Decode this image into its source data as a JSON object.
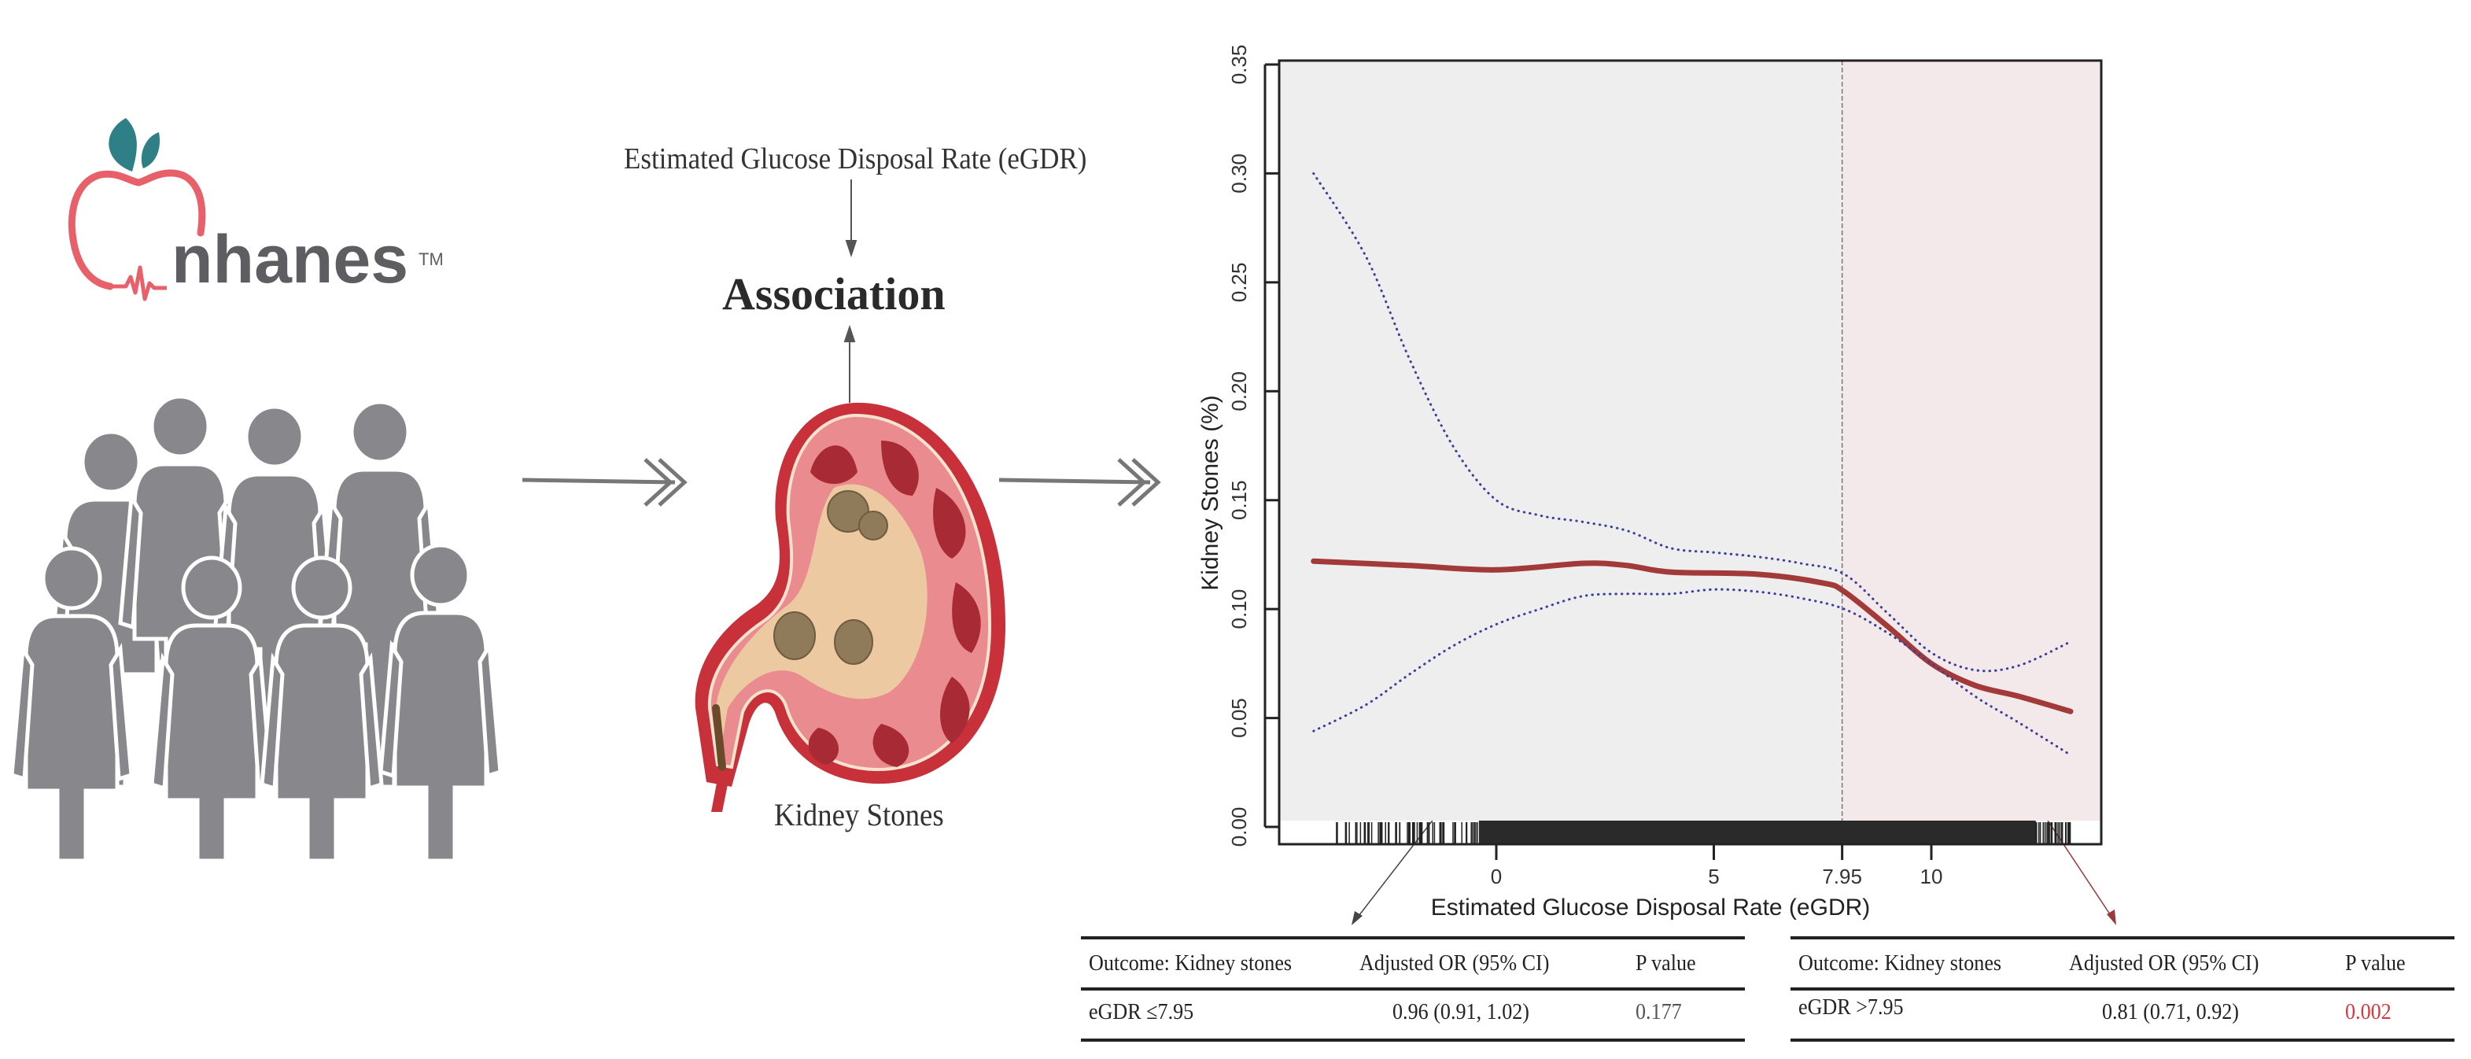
{
  "logo": {
    "text": "nhanes",
    "trademark": "TM",
    "colors": {
      "apple": "#e8606a",
      "leaf": "#2f7f86",
      "text": "#5e5e62"
    }
  },
  "people_icon": "group-of-people-icon",
  "exposure_label": "Estimated Glucose Disposal Rate (eGDR)",
  "center_title": "Association",
  "outcome_label": "Kidney Stones",
  "kidney_icon": "kidney-with-stones-icon",
  "chart_data": {
    "type": "line",
    "xlabel": "Estimated Glucose Disposal Rate (eGDR)",
    "ylabel": "Kidney Stones (%)",
    "xlim": [
      -4.5,
      14.0
    ],
    "ylim": [
      0,
      0.35
    ],
    "xticks": [
      "0",
      "5",
      "7.95",
      "10"
    ],
    "xtick_values": [
      0,
      5,
      7.95,
      10
    ],
    "yticks": [
      "0.00",
      "0.05",
      "0.10",
      "0.15",
      "0.20",
      "0.25",
      "0.30",
      "0.35"
    ],
    "ytick_values": [
      0,
      0.05,
      0.1,
      0.15,
      0.2,
      0.25,
      0.3,
      0.35
    ],
    "cutoff": 7.95,
    "grid": false,
    "series": [
      {
        "role": "estimate",
        "style": "solid",
        "color": "#a33a3a",
        "x": [
          -4.2,
          -2,
          0,
          2,
          3,
          4,
          6,
          7.5,
          8,
          9,
          10,
          11,
          12,
          13.2
        ],
        "y": [
          0.122,
          0.12,
          0.118,
          0.121,
          0.12,
          0.117,
          0.116,
          0.112,
          0.108,
          0.092,
          0.075,
          0.065,
          0.06,
          0.053
        ]
      },
      {
        "role": "upper 95% CI",
        "style": "dotted",
        "color": "#3b3f9a",
        "x": [
          -4.2,
          -3,
          -2,
          -1,
          0,
          1,
          2,
          3,
          4,
          5,
          6,
          7,
          8,
          9,
          10,
          11,
          12,
          13.2
        ],
        "y": [
          0.3,
          0.262,
          0.215,
          0.175,
          0.15,
          0.143,
          0.14,
          0.136,
          0.128,
          0.126,
          0.124,
          0.121,
          0.116,
          0.098,
          0.08,
          0.072,
          0.074,
          0.085
        ]
      },
      {
        "role": "lower 95% CI",
        "style": "dotted",
        "color": "#3b3f9a",
        "x": [
          -4.2,
          -3,
          -2,
          -1,
          0,
          1,
          2,
          3,
          4,
          5,
          6,
          7,
          8,
          9,
          10,
          11,
          12,
          13.2
        ],
        "y": [
          0.044,
          0.056,
          0.07,
          0.083,
          0.093,
          0.1,
          0.106,
          0.107,
          0.107,
          0.109,
          0.108,
          0.105,
          0.1,
          0.089,
          0.075,
          0.06,
          0.048,
          0.033
        ]
      }
    ],
    "rug": {
      "dense_from": -0.4,
      "dense_to": 12.4,
      "sparse_from": -4.3,
      "sparse_to": 13.2
    },
    "region_colors": {
      "below_cutoff": "#eeeeee",
      "above_cutoff": "#f3e9ea"
    }
  },
  "tables": [
    {
      "headers": [
        "Outcome: Kidney stones",
        "Adjusted OR (95% CI)",
        "P value"
      ],
      "row": [
        "eGDR ≤7.95",
        "0.96 (0.91, 1.02)",
        "0.177"
      ],
      "p_color": "#555555"
    },
    {
      "headers": [
        "Outcome: Kidney stones",
        "Adjusted OR (95% CI)",
        "P value"
      ],
      "row": [
        "eGDR >7.95",
        "0.81 (0.71, 0.92)",
        "0.002"
      ],
      "p_color": "#d9363e"
    }
  ]
}
